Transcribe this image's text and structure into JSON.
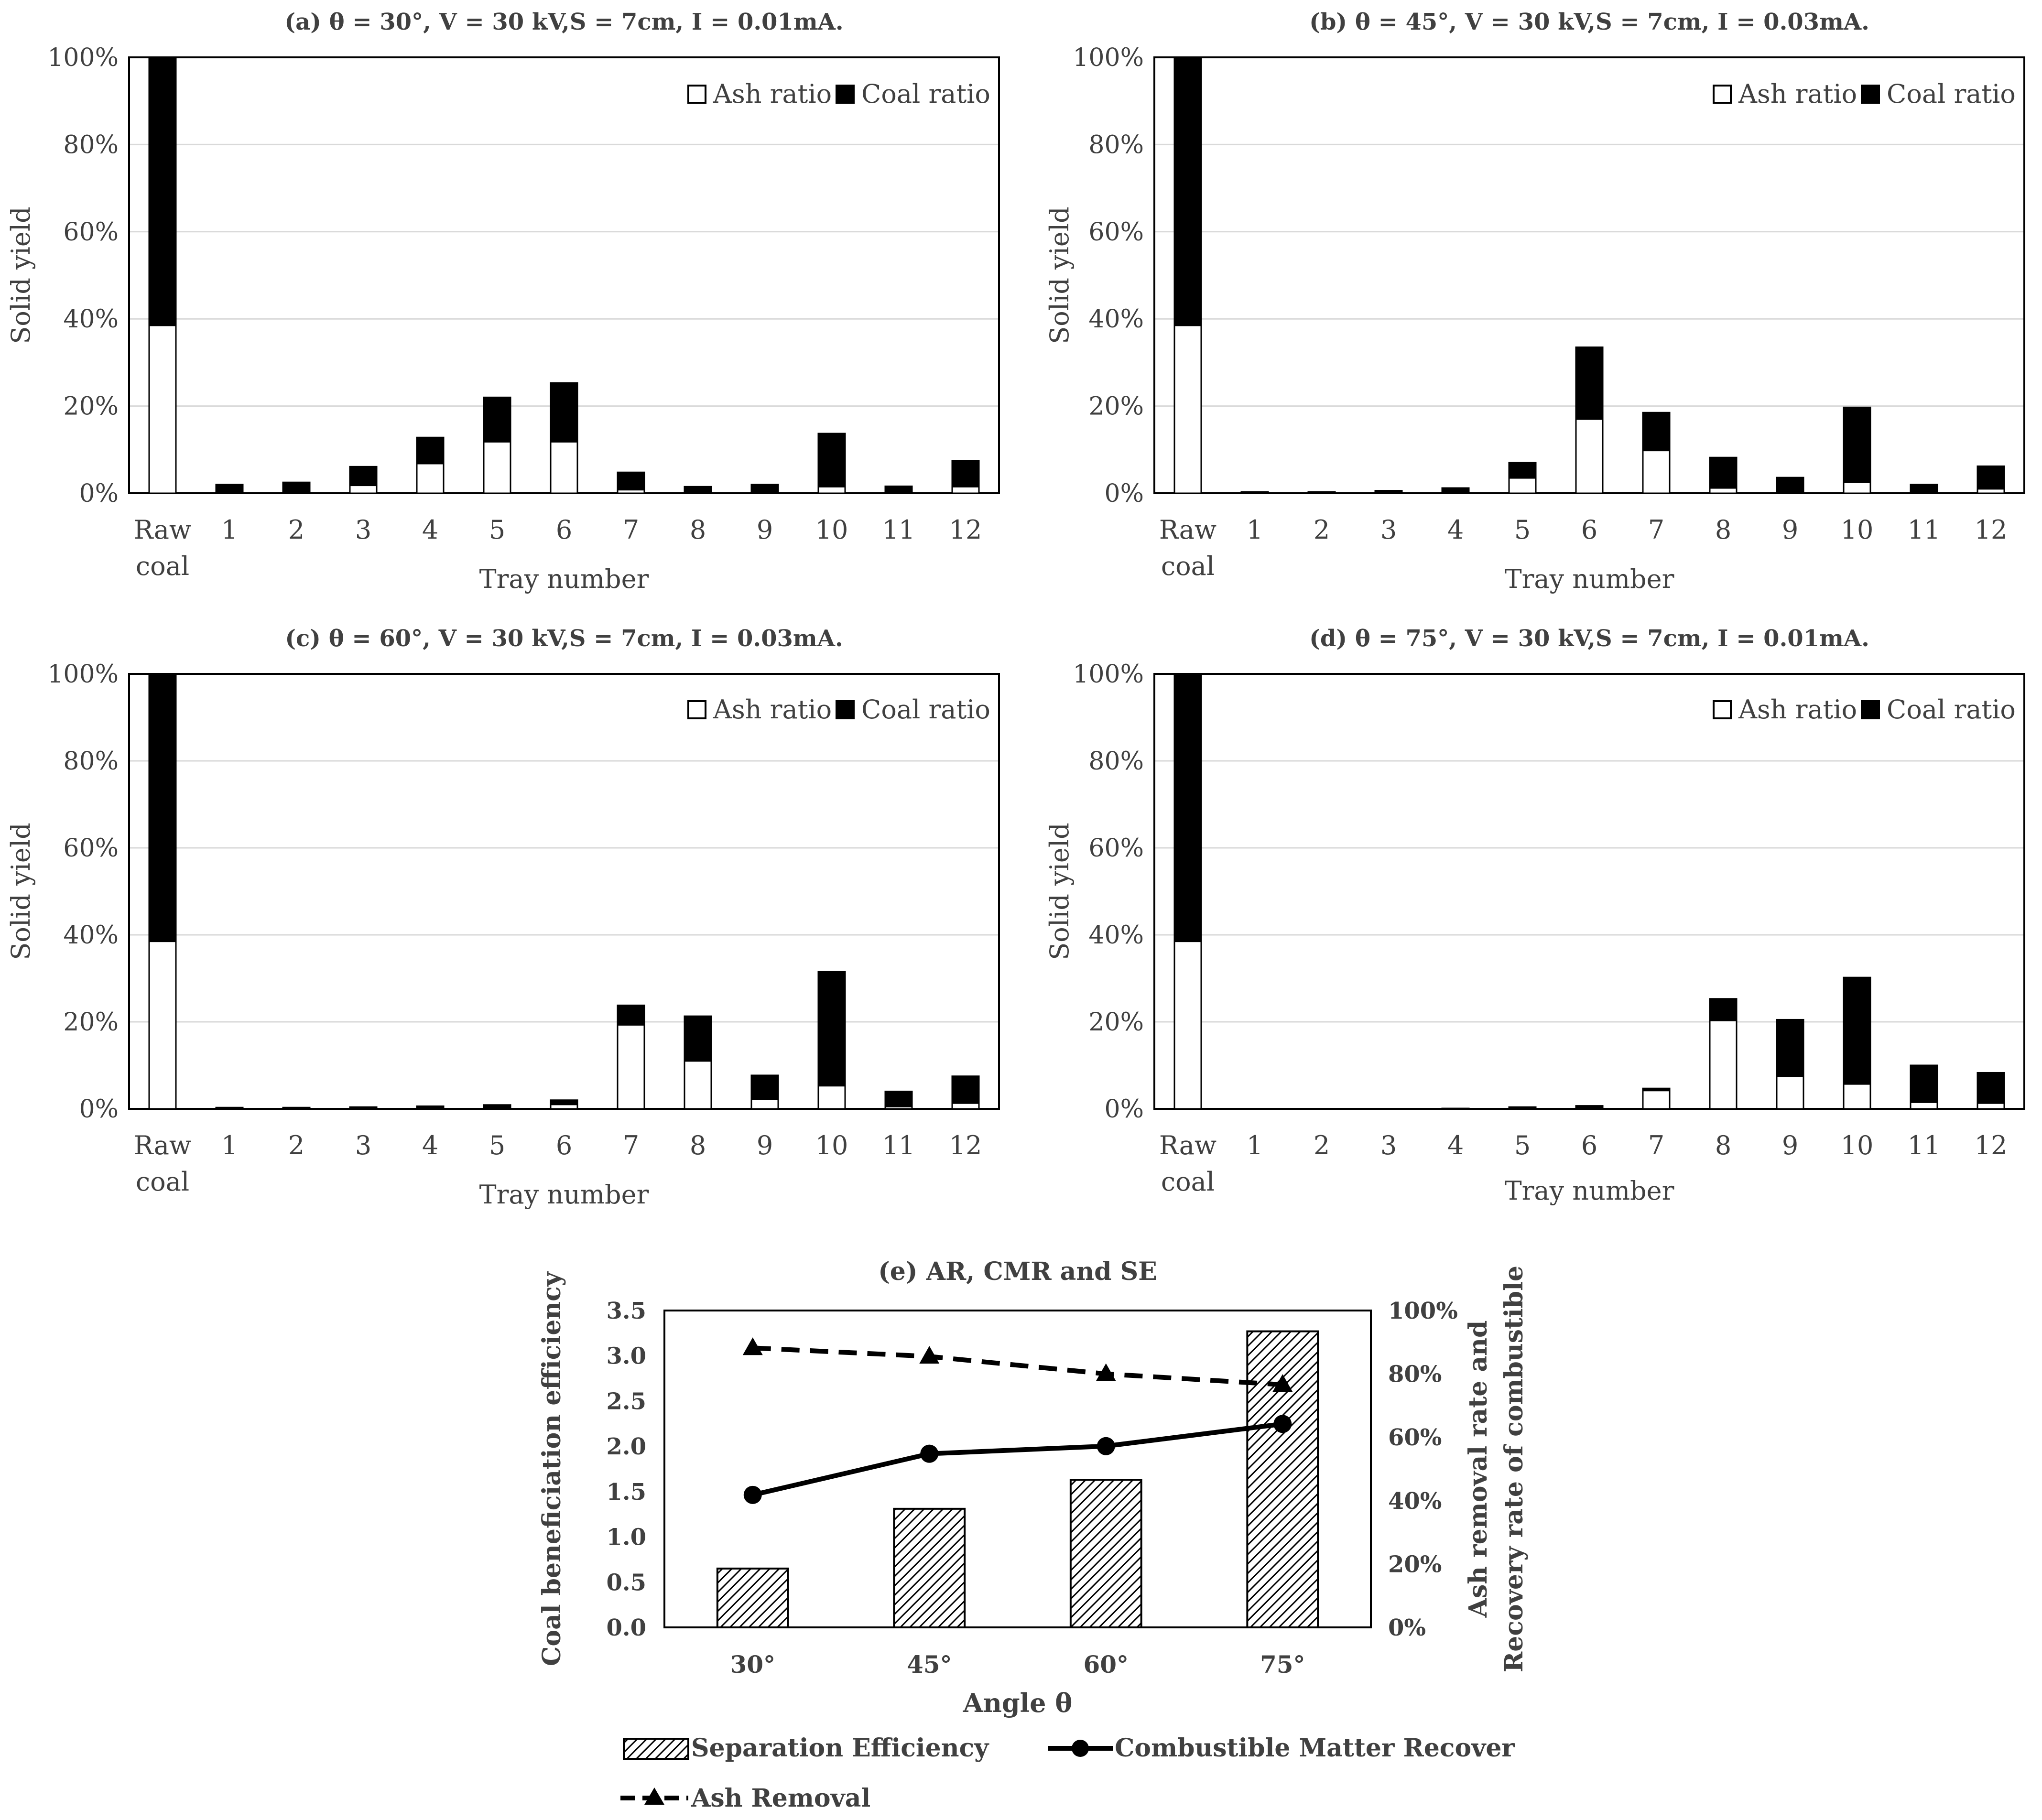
{
  "chart_data": [
    {
      "id": "a",
      "type": "bar",
      "stacked": true,
      "title": "(a) θ = 30°, V = 30 kV,S = 7cm, I = 0.01mA.",
      "xlabel": "Tray number",
      "ylabel": "Solid yield",
      "ylim": [
        0,
        100
      ],
      "yticks": [
        "0%",
        "20%",
        "40%",
        "60%",
        "80%",
        "100%"
      ],
      "categories": [
        "Raw coal",
        "1",
        "2",
        "3",
        "4",
        "5",
        "6",
        "7",
        "8",
        "9",
        "10",
        "11",
        "12"
      ],
      "legend": [
        "Ash ratio",
        "Coal ratio"
      ],
      "series": [
        {
          "name": "Ash ratio",
          "values": [
            38.5,
            0.2,
            0.3,
            1.8,
            6.8,
            11.8,
            11.8,
            0.8,
            0.3,
            0.3,
            1.5,
            0.3,
            1.5
          ]
        },
        {
          "name": "Coal ratio",
          "values": [
            61.5,
            1.8,
            2.2,
            4.3,
            6.0,
            10.2,
            13.5,
            4.0,
            1.2,
            1.7,
            12.2,
            1.3,
            6.0
          ]
        }
      ]
    },
    {
      "id": "b",
      "type": "bar",
      "stacked": true,
      "title": "(b)  θ = 45°, V = 30 kV,S = 7cm, I = 0.03mA.",
      "xlabel": "Tray number",
      "ylabel": "Solid yield",
      "ylim": [
        0,
        100
      ],
      "yticks": [
        "0%",
        "20%",
        "40%",
        "60%",
        "80%",
        "100%"
      ],
      "categories": [
        "Raw coal",
        "1",
        "2",
        "3",
        "4",
        "5",
        "6",
        "7",
        "8",
        "9",
        "10",
        "11",
        "12"
      ],
      "legend": [
        "Ash ratio",
        "Coal ratio"
      ],
      "series": [
        {
          "name": "Ash ratio",
          "values": [
            38.5,
            0.05,
            0.05,
            0.1,
            0.2,
            3.5,
            17.0,
            9.8,
            1.2,
            0.3,
            2.5,
            0.2,
            1.0
          ]
        },
        {
          "name": "Coal ratio",
          "values": [
            61.5,
            0.25,
            0.25,
            0.5,
            1.0,
            3.5,
            16.5,
            8.7,
            7.0,
            3.3,
            17.2,
            1.8,
            5.2
          ]
        }
      ]
    },
    {
      "id": "c",
      "type": "bar",
      "stacked": true,
      "title": "(c) θ = 60°, V = 30 kV,S = 7cm, I = 0.03mA.",
      "xlabel": "Tray number",
      "ylabel": "Solid yield",
      "ylim": [
        0,
        100
      ],
      "yticks": [
        "0%",
        "20%",
        "40%",
        "60%",
        "80%",
        "100%"
      ],
      "categories": [
        "Raw coal",
        "1",
        "2",
        "3",
        "4",
        "5",
        "6",
        "7",
        "8",
        "9",
        "10",
        "11",
        "12"
      ],
      "legend": [
        "Ash ratio",
        "Coal ratio"
      ],
      "series": [
        {
          "name": "Ash ratio",
          "values": [
            38.5,
            0.05,
            0.05,
            0.05,
            0.1,
            0.2,
            1.0,
            19.3,
            11.0,
            2.2,
            5.3,
            0.5,
            1.3
          ]
        },
        {
          "name": "Coal ratio",
          "values": [
            61.5,
            0.25,
            0.25,
            0.35,
            0.5,
            0.7,
            1.0,
            4.5,
            10.3,
            5.5,
            26.2,
            3.5,
            6.2
          ]
        }
      ]
    },
    {
      "id": "d",
      "type": "bar",
      "stacked": true,
      "title": "(d) θ = 75°, V = 30 kV,S = 7cm, I = 0.01mA.",
      "xlabel": "Tray number",
      "ylabel": "Solid yield",
      "ylim": [
        0,
        100
      ],
      "yticks": [
        "0%",
        "20%",
        "40%",
        "60%",
        "80%",
        "100%"
      ],
      "categories": [
        "Raw coal",
        "1",
        "2",
        "3",
        "4",
        "5",
        "6",
        "7",
        "8",
        "9",
        "10",
        "11",
        "12"
      ],
      "legend": [
        "Ash ratio",
        "Coal ratio"
      ],
      "series": [
        {
          "name": "Ash ratio",
          "values": [
            38.5,
            0.0,
            0.0,
            0.0,
            0.0,
            0.1,
            0.2,
            4.2,
            20.3,
            7.5,
            5.7,
            1.5,
            1.3
          ]
        },
        {
          "name": "Coal ratio",
          "values": [
            61.5,
            0.05,
            0.05,
            0.05,
            0.1,
            0.3,
            0.5,
            0.5,
            5.0,
            13.0,
            24.5,
            8.5,
            7.0
          ]
        }
      ]
    },
    {
      "id": "e",
      "type": "bar",
      "title": "(e) AR, CMR and SE",
      "xlabel": "Angle θ",
      "ylabel": "Coal beneficiation efficiency",
      "y2label": [
        "Ash removal rate and",
        "Recovery rate of combustible"
      ],
      "categories": [
        "30°",
        "45°",
        "60°",
        "75°"
      ],
      "ylim": [
        0,
        3.5
      ],
      "yticks": [
        "0.0",
        "0.5",
        "1.0",
        "1.5",
        "2.0",
        "2.5",
        "3.0",
        "3.5"
      ],
      "y2lim": [
        0,
        100
      ],
      "y2ticks": [
        "0%",
        "20%",
        "40%",
        "60%",
        "80%",
        "100%"
      ],
      "series": [
        {
          "name": "Separation Efficiency",
          "kind": "bar",
          "axis": "left",
          "values": [
            0.65,
            1.31,
            1.63,
            3.27
          ]
        },
        {
          "name": "Combustible Matter Recover",
          "kind": "line",
          "axis": "right",
          "values": [
            41.8,
            54.8,
            57.2,
            64.2
          ]
        },
        {
          "name": "Ash Removal",
          "kind": "dashed-line",
          "axis": "right",
          "values": [
            88.2,
            85.5,
            80.0,
            76.6
          ]
        }
      ]
    }
  ]
}
